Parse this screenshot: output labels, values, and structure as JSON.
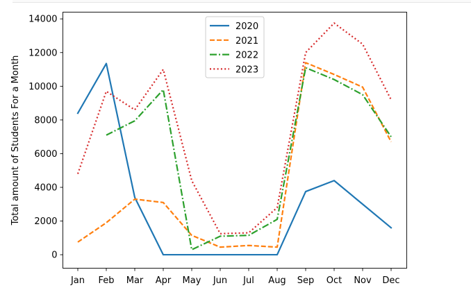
{
  "chart_data": {
    "type": "line",
    "title": "",
    "xlabel": "",
    "ylabel": "Total amount of Students For a Month",
    "categories": [
      "Jan",
      "Feb",
      "Mar",
      "Apr",
      "May",
      "Jun",
      "Jul",
      "Aug",
      "Sep",
      "Oct",
      "Nov",
      "Dec"
    ],
    "ylim": [
      -800,
      14400
    ],
    "yticks": [
      0,
      2000,
      4000,
      6000,
      8000,
      10000,
      12000,
      14000
    ],
    "grid": false,
    "legend_position": "upper-center",
    "series": [
      {
        "name": "2020",
        "color": "#1f77b4",
        "style": "solid",
        "values": [
          8400,
          11350,
          3400,
          0,
          0,
          0,
          0,
          0,
          3750,
          4400,
          3000,
          1600
        ]
      },
      {
        "name": "2021",
        "color": "#ff7f0e",
        "style": "dashed",
        "values": [
          750,
          1900,
          3300,
          3100,
          1150,
          450,
          550,
          450,
          11400,
          10700,
          9950,
          6700
        ]
      },
      {
        "name": "2022",
        "color": "#2ca02c",
        "style": "dashdot",
        "values": [
          null,
          7100,
          7950,
          9800,
          300,
          1100,
          1150,
          2100,
          11100,
          10400,
          9500,
          7000
        ]
      },
      {
        "name": "2023",
        "color": "#d62728",
        "style": "dotted",
        "values": [
          4800,
          9700,
          8600,
          11000,
          4400,
          1250,
          1300,
          2800,
          12000,
          13750,
          12500,
          9200
        ]
      }
    ]
  }
}
